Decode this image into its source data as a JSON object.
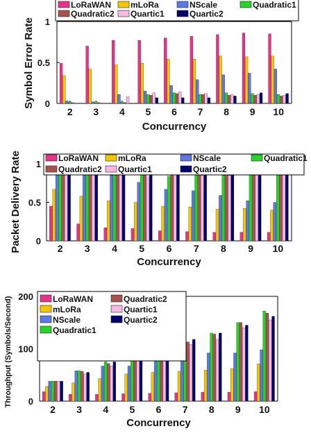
{
  "chart_data": [
    {
      "type": "bar",
      "xlabel": "Concurrency",
      "ylabel": "Symbol Error Rate",
      "ylim": [
        0,
        1
      ],
      "yticks": [
        "0",
        "0.5",
        "1"
      ],
      "categories": [
        "2",
        "3",
        "4",
        "5",
        "6",
        "7",
        "8",
        "9",
        "10"
      ],
      "legend": "top, 4 columns, partly clipped by the top edge",
      "series": [
        {
          "name": "LoRaWAN",
          "color": "#e8338d",
          "values": [
            0.49,
            0.7,
            0.77,
            0.77,
            0.8,
            0.82,
            0.84,
            0.86,
            0.85
          ]
        },
        {
          "name": "mLoRa",
          "color": "#f6c700",
          "values": [
            0.34,
            0.42,
            0.47,
            0.49,
            0.54,
            0.54,
            0.58,
            0.57,
            0.58
          ]
        },
        {
          "name": "NScale",
          "color": "#5b78e6",
          "values": [
            0.03,
            0.02,
            0.11,
            0.15,
            0.22,
            0.29,
            0.35,
            0.37,
            0.42
          ]
        },
        {
          "name": "Quadratic1",
          "color": "#26d626",
          "values": [
            0.02,
            0.02,
            0.02,
            0.11,
            0.13,
            0.11,
            0.13,
            0.12,
            0.11
          ]
        },
        {
          "name": "Quadratic2",
          "color": "#a7524f",
          "values": [
            0.01,
            0.01,
            0.01,
            0.1,
            0.12,
            0.11,
            0.1,
            0.1,
            0.09
          ]
        },
        {
          "name": "Quartic1",
          "color": "#f7b8e4",
          "values": [
            0.0,
            0.0,
            0.08,
            0.13,
            0.14,
            0.12,
            0.11,
            0.11,
            0.1
          ]
        },
        {
          "name": "Quartic2",
          "color": "#00006e",
          "values": [
            0.0,
            0.0,
            0.0,
            0.07,
            0.07,
            0.07,
            0.09,
            0.13,
            0.12
          ]
        }
      ]
    },
    {
      "type": "bar",
      "xlabel": "Concurrency",
      "ylabel": "Packet Delivery Rate",
      "ylim": [
        0,
        1
      ],
      "yticks": [
        "0",
        "0.5",
        "1"
      ],
      "categories": [
        "2",
        "3",
        "4",
        "5",
        "6",
        "7",
        "8",
        "9",
        "10"
      ],
      "legend": "top, 4 columns",
      "series": [
        {
          "name": "LoRaWAN",
          "color": "#e8338d",
          "values": [
            0.45,
            0.22,
            0.17,
            0.16,
            0.13,
            0.12,
            0.11,
            0.11,
            0.11
          ]
        },
        {
          "name": "mLoRa",
          "color": "#f6c700",
          "values": [
            0.67,
            0.58,
            0.52,
            0.5,
            0.45,
            0.44,
            0.41,
            0.42,
            0.4
          ]
        },
        {
          "name": "NScale",
          "color": "#5b78e6",
          "values": [
            1.0,
            1.0,
            0.85,
            0.76,
            0.67,
            0.65,
            0.59,
            0.52,
            0.5
          ]
        },
        {
          "name": "Quadratic1",
          "color": "#26d626",
          "values": [
            1.0,
            1.0,
            1.0,
            0.89,
            0.84,
            0.86,
            0.85,
            0.88,
            0.88
          ]
        },
        {
          "name": "Quadratic2",
          "color": "#a7524f",
          "values": [
            1.0,
            1.0,
            0.89,
            0.87,
            0.87,
            0.89,
            0.88,
            0.89,
            0.88
          ]
        },
        {
          "name": "Quartic1",
          "color": "#f7b8e4",
          "values": [
            1.0,
            0.88,
            0.97,
            0.83,
            0.84,
            0.85,
            0.85,
            0.87,
            0.87
          ]
        },
        {
          "name": "Quartic2",
          "color": "#00006e",
          "values": [
            1.0,
            0.94,
            0.94,
            0.92,
            0.87,
            0.89,
            0.86,
            0.85,
            0.86
          ]
        }
      ]
    },
    {
      "type": "bar",
      "xlabel": "Concurrency",
      "ylabel": "Throughput (Symbols/Second)",
      "ylim": [
        0,
        200
      ],
      "yticks": [
        "0",
        "100",
        "200"
      ],
      "categories": [
        "2",
        "3",
        "4",
        "5",
        "6",
        "7",
        "8",
        "9",
        "10"
      ],
      "legend": "top-left, 2 columns",
      "series": [
        {
          "name": "LoRaWAN",
          "color": "#e8338d",
          "values": [
            18,
            13,
            13,
            14,
            15,
            16,
            17,
            17,
            18
          ]
        },
        {
          "name": "mLoRa",
          "color": "#f6c700",
          "values": [
            28,
            35,
            43,
            52,
            55,
            57,
            59,
            62,
            71
          ]
        },
        {
          "name": "NScale",
          "color": "#5b78e6",
          "values": [
            38,
            58,
            67,
            67,
            78,
            86,
            92,
            92,
            98
          ]
        },
        {
          "name": "Quadratic1",
          "color": "#26d626",
          "values": [
            38,
            58,
            75,
            90,
            93,
            113,
            130,
            150,
            172
          ]
        },
        {
          "name": "Quadratic2",
          "color": "#a7524f",
          "values": [
            38,
            57,
            72,
            82,
            93,
            113,
            128,
            150,
            168
          ]
        },
        {
          "name": "Quartic1",
          "color": "#f7b8e4",
          "values": [
            38,
            52,
            67,
            80,
            88,
            108,
            118,
            140,
            155
          ]
        },
        {
          "name": "Quartic2",
          "color": "#00006e",
          "values": [
            38,
            55,
            75,
            92,
            95,
            118,
            130,
            145,
            162
          ]
        }
      ]
    }
  ]
}
